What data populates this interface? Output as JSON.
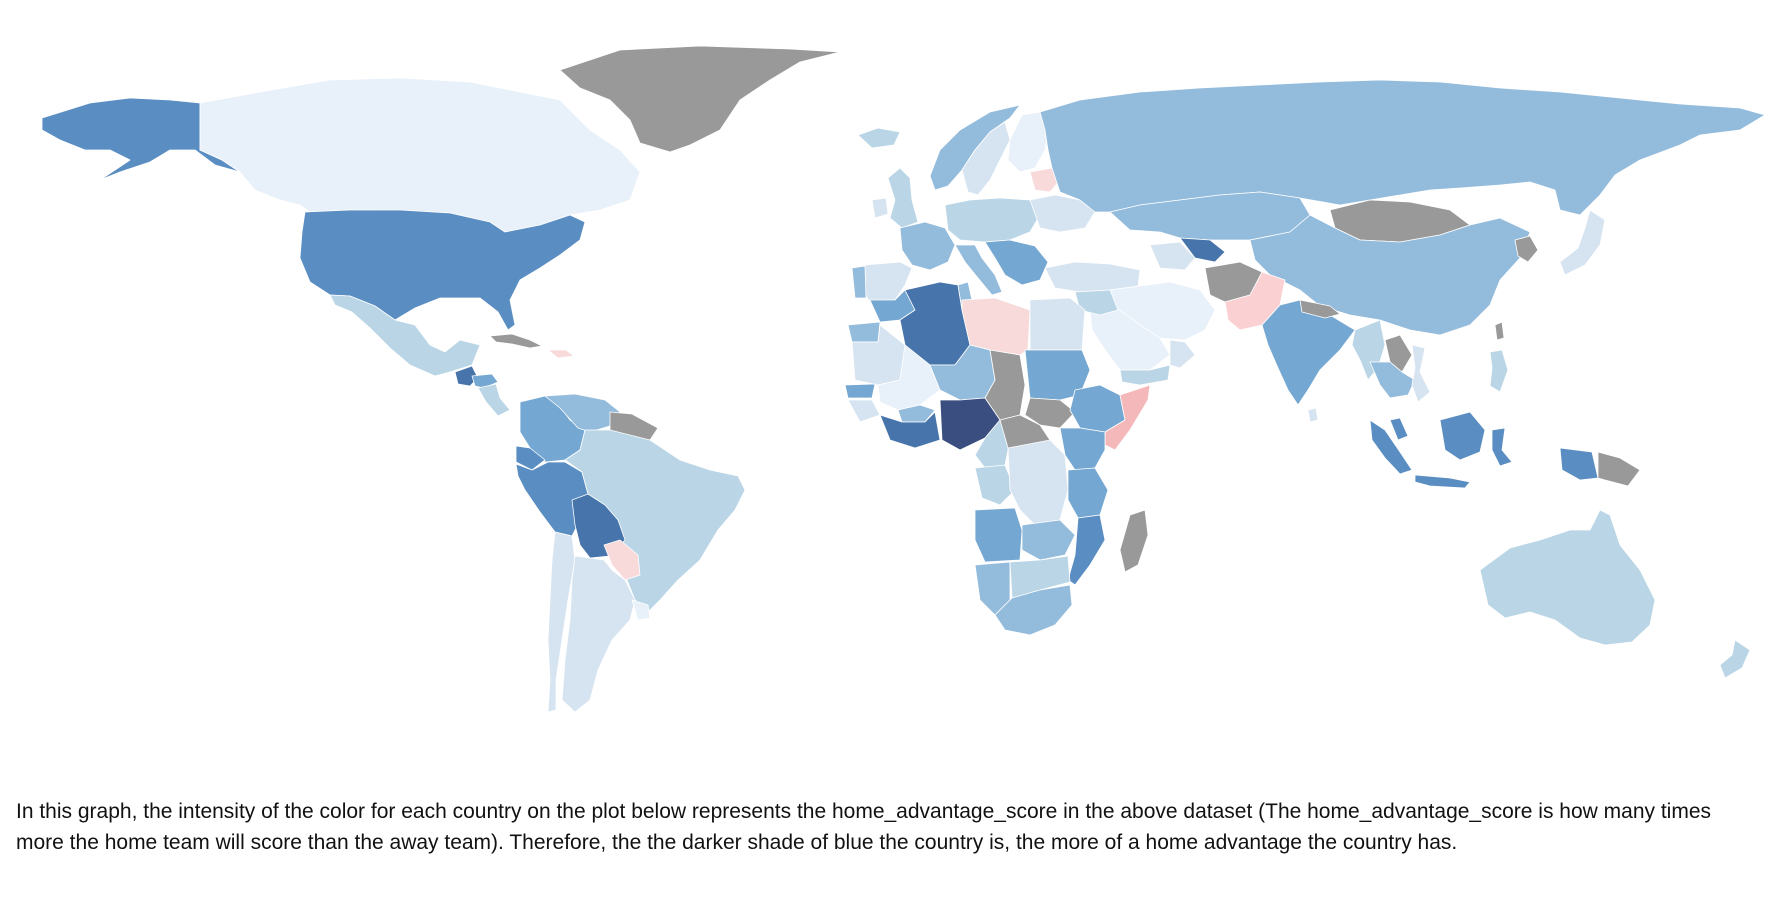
{
  "caption": "In this graph, the intensity of the color for each country on the plot below represents the home_advantage_score in the above dataset (The home_advantage_score is how many times more the home team will score than the away team). Therefore, the the darker shade of blue the country is, the more of a home advantage the country has.",
  "colors": {
    "no_data": "#999999",
    "background": "#ffffff",
    "scale": [
      "#f8dadb",
      "#fbd0d2",
      "#f4b8ba",
      "#e8f0f9",
      "#d6e3f1",
      "#b9d5e6",
      "#93bbdc",
      "#74a7d1",
      "#5a8dc2",
      "#4674ab",
      "#3a4e80"
    ]
  },
  "map": {
    "type": "choropleth",
    "metric": "home_advantage_score",
    "countries": [
      {
        "id": "alaska-usa",
        "shade": "#5a8dc2"
      },
      {
        "id": "canada",
        "shade": "#e8f0f9"
      },
      {
        "id": "greenland",
        "shade": "#999999"
      },
      {
        "id": "usa",
        "shade": "#5a8dc2"
      },
      {
        "id": "mexico",
        "shade": "#b9d5e6"
      },
      {
        "id": "guatemala",
        "shade": "#4674ab"
      },
      {
        "id": "honduras",
        "shade": "#74a7d1"
      },
      {
        "id": "nicaragua",
        "shade": "#b9d5e6"
      },
      {
        "id": "cuba",
        "shade": "#999999"
      },
      {
        "id": "dominican-republic",
        "shade": "#f8dadb"
      },
      {
        "id": "colombia",
        "shade": "#74a7d1"
      },
      {
        "id": "venezuela",
        "shade": "#93bbdc"
      },
      {
        "id": "guyana-suriname",
        "shade": "#999999"
      },
      {
        "id": "ecuador",
        "shade": "#5a8dc2"
      },
      {
        "id": "peru",
        "shade": "#5a8dc2"
      },
      {
        "id": "brazil",
        "shade": "#b9d5e6"
      },
      {
        "id": "bolivia",
        "shade": "#4674ab"
      },
      {
        "id": "paraguay",
        "shade": "#f8dadb"
      },
      {
        "id": "chile",
        "shade": "#d6e3f1"
      },
      {
        "id": "argentina",
        "shade": "#d6e3f1"
      },
      {
        "id": "uruguay",
        "shade": "#e8f0f9"
      },
      {
        "id": "iceland",
        "shade": "#b9d5e6"
      },
      {
        "id": "norway",
        "shade": "#93bbdc"
      },
      {
        "id": "sweden",
        "shade": "#d6e3f1"
      },
      {
        "id": "finland",
        "shade": "#e8f0f9"
      },
      {
        "id": "united-kingdom",
        "shade": "#b9d5e6"
      },
      {
        "id": "ireland",
        "shade": "#d6e3f1"
      },
      {
        "id": "france",
        "shade": "#93bbdc"
      },
      {
        "id": "spain",
        "shade": "#d6e3f1"
      },
      {
        "id": "portugal",
        "shade": "#93bbdc"
      },
      {
        "id": "germany-central-europe",
        "shade": "#b9d5e6"
      },
      {
        "id": "italy",
        "shade": "#93bbdc"
      },
      {
        "id": "balkans",
        "shade": "#74a7d1"
      },
      {
        "id": "belarus",
        "shade": "#f8dadb"
      },
      {
        "id": "ukraine",
        "shade": "#d6e3f1"
      },
      {
        "id": "turkey",
        "shade": "#d6e3f1"
      },
      {
        "id": "russia",
        "shade": "#93bbdc"
      },
      {
        "id": "kazakhstan",
        "shade": "#93bbdc"
      },
      {
        "id": "uzbekistan",
        "shade": "#4674ab"
      },
      {
        "id": "turkmenistan",
        "shade": "#d6e3f1"
      },
      {
        "id": "mongolia",
        "shade": "#999999"
      },
      {
        "id": "china",
        "shade": "#93bbdc"
      },
      {
        "id": "north-korea",
        "shade": "#999999"
      },
      {
        "id": "japan",
        "shade": "#d6e3f1"
      },
      {
        "id": "iran",
        "shade": "#e8f0f9"
      },
      {
        "id": "afghanistan",
        "shade": "#999999"
      },
      {
        "id": "pakistan",
        "shade": "#fbd0d2"
      },
      {
        "id": "india",
        "shade": "#74a7d1"
      },
      {
        "id": "nepal",
        "shade": "#999999"
      },
      {
        "id": "saudi-arabia",
        "shade": "#e8f0f9"
      },
      {
        "id": "yemen",
        "shade": "#b9d5e6"
      },
      {
        "id": "oman",
        "shade": "#d6e3f1"
      },
      {
        "id": "iraq-syria",
        "shade": "#b9d5e6"
      },
      {
        "id": "myanmar",
        "shade": "#b9d5e6"
      },
      {
        "id": "laos",
        "shade": "#999999"
      },
      {
        "id": "thailand-cambodia",
        "shade": "#93bbdc"
      },
      {
        "id": "vietnam",
        "shade": "#d6e3f1"
      },
      {
        "id": "philippines",
        "shade": "#b9d5e6"
      },
      {
        "id": "taiwan",
        "shade": "#999999"
      },
      {
        "id": "malaysia-indonesia",
        "shade": "#5a8dc2"
      },
      {
        "id": "sumatra",
        "shade": "#5a8dc2"
      },
      {
        "id": "java",
        "shade": "#5a8dc2"
      },
      {
        "id": "borneo",
        "shade": "#5a8dc2"
      },
      {
        "id": "sulawesi",
        "shade": "#5a8dc2"
      },
      {
        "id": "papua-indonesia",
        "shade": "#5a8dc2"
      },
      {
        "id": "papua-new-guinea",
        "shade": "#999999"
      },
      {
        "id": "australia",
        "shade": "#b9d5e6"
      },
      {
        "id": "new-zealand",
        "shade": "#b9d5e6"
      },
      {
        "id": "morocco",
        "shade": "#74a7d1"
      },
      {
        "id": "western-sahara",
        "shade": "#93bbdc"
      },
      {
        "id": "algeria",
        "shade": "#4674ab"
      },
      {
        "id": "tunisia",
        "shade": "#93bbdc"
      },
      {
        "id": "libya",
        "shade": "#f8dadb"
      },
      {
        "id": "egypt",
        "shade": "#d6e3f1"
      },
      {
        "id": "mauritania",
        "shade": "#d6e3f1"
      },
      {
        "id": "mali",
        "shade": "#e8f0f9"
      },
      {
        "id": "niger",
        "shade": "#93bbdc"
      },
      {
        "id": "chad",
        "shade": "#999999"
      },
      {
        "id": "sudan",
        "shade": "#74a7d1"
      },
      {
        "id": "south-sudan",
        "shade": "#999999"
      },
      {
        "id": "ethiopia",
        "shade": "#74a7d1"
      },
      {
        "id": "somalia",
        "shade": "#f4b8ba"
      },
      {
        "id": "senegal",
        "shade": "#74a7d1"
      },
      {
        "id": "guinea",
        "shade": "#d6e3f1"
      },
      {
        "id": "ivory-coast-ghana",
        "shade": "#4674ab"
      },
      {
        "id": "burkina-faso",
        "shade": "#93bbdc"
      },
      {
        "id": "nigeria",
        "shade": "#3a4e80"
      },
      {
        "id": "cameroon",
        "shade": "#b9d5e6"
      },
      {
        "id": "central-african-republic",
        "shade": "#999999"
      },
      {
        "id": "gabon-congo",
        "shade": "#b9d5e6"
      },
      {
        "id": "dr-congo",
        "shade": "#d6e3f1"
      },
      {
        "id": "uganda-kenya",
        "shade": "#74a7d1"
      },
      {
        "id": "tanzania",
        "shade": "#74a7d1"
      },
      {
        "id": "angola",
        "shade": "#74a7d1"
      },
      {
        "id": "zambia",
        "shade": "#93bbdc"
      },
      {
        "id": "mozambique",
        "shade": "#5a8dc2"
      },
      {
        "id": "namibia",
        "shade": "#93bbdc"
      },
      {
        "id": "botswana-zimbabwe",
        "shade": "#b9d5e6"
      },
      {
        "id": "south-africa",
        "shade": "#93bbdc"
      },
      {
        "id": "madagascar",
        "shade": "#999999"
      },
      {
        "id": "sri-lanka",
        "shade": "#d6e3f1"
      }
    ]
  }
}
